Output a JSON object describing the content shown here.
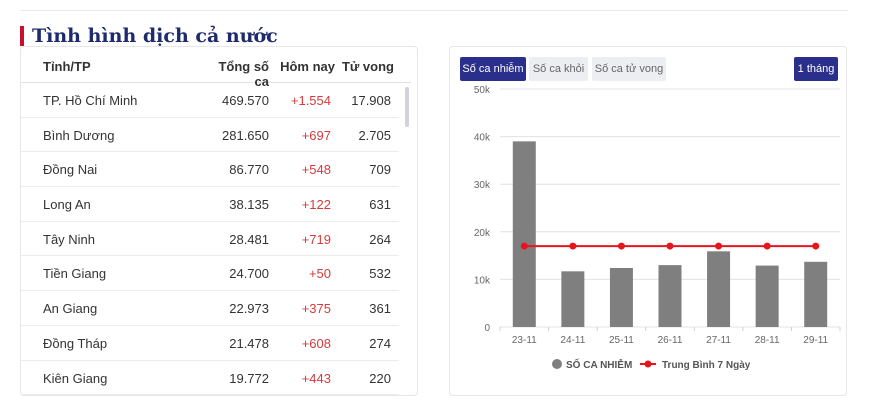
{
  "section_title": "Tình hình dịch cả nước",
  "table": {
    "headers": {
      "province": "Tỉnh/TP",
      "total": "Tổng số ca",
      "today": "Hôm nay",
      "deaths": "Tử vong"
    },
    "rows": [
      {
        "province": "TP. Hồ Chí Minh",
        "total": "469.570",
        "today": "+1.554",
        "deaths": "17.908"
      },
      {
        "province": "Bình Dương",
        "total": "281.650",
        "today": "+697",
        "deaths": "2.705"
      },
      {
        "province": "Đồng Nai",
        "total": "86.770",
        "today": "+548",
        "deaths": "709"
      },
      {
        "province": "Long An",
        "total": "38.135",
        "today": "+122",
        "deaths": "631"
      },
      {
        "province": "Tây Ninh",
        "total": "28.481",
        "today": "+719",
        "deaths": "264"
      },
      {
        "province": "Tiền Giang",
        "total": "24.700",
        "today": "+50",
        "deaths": "532"
      },
      {
        "province": "An Giang",
        "total": "22.973",
        "today": "+375",
        "deaths": "361"
      },
      {
        "province": "Đồng Tháp",
        "total": "21.478",
        "today": "+608",
        "deaths": "274"
      },
      {
        "province": "Kiên Giang",
        "total": "19.772",
        "today": "+443",
        "deaths": "220"
      }
    ]
  },
  "chart_controls": {
    "tabs": [
      "Số ca nhiễm",
      "Số ca khỏi",
      "Số ca tử vong"
    ],
    "active_tab": "Số ca nhiễm",
    "range_label": "1 tháng"
  },
  "colors": {
    "title_accent": "#c8102e",
    "active_button": "#2b2f8c",
    "bar": "#7f7f7f",
    "avg_line": "#e8141d",
    "positive_change": "#d63b3b"
  },
  "chart_data": {
    "type": "bar",
    "categories": [
      "23-11",
      "24-11",
      "25-11",
      "26-11",
      "27-11",
      "28-11",
      "29-11"
    ],
    "series": [
      {
        "name": "SỐ CA NHIỄM",
        "type": "bar",
        "values": [
          39000,
          11700,
          12400,
          13000,
          15900,
          12900,
          13700
        ]
      },
      {
        "name": "Trung Bình 7 Ngày",
        "type": "line",
        "values": [
          17000,
          17000,
          17000,
          17000,
          17000,
          17000,
          17000
        ]
      }
    ],
    "ylim": [
      0,
      50000
    ],
    "yticks": [
      0,
      10000,
      20000,
      30000,
      40000,
      50000
    ],
    "ytick_labels": [
      "0",
      "10k",
      "20k",
      "30k",
      "40k",
      "50k"
    ],
    "grid": true,
    "legend_position": "bottom"
  }
}
